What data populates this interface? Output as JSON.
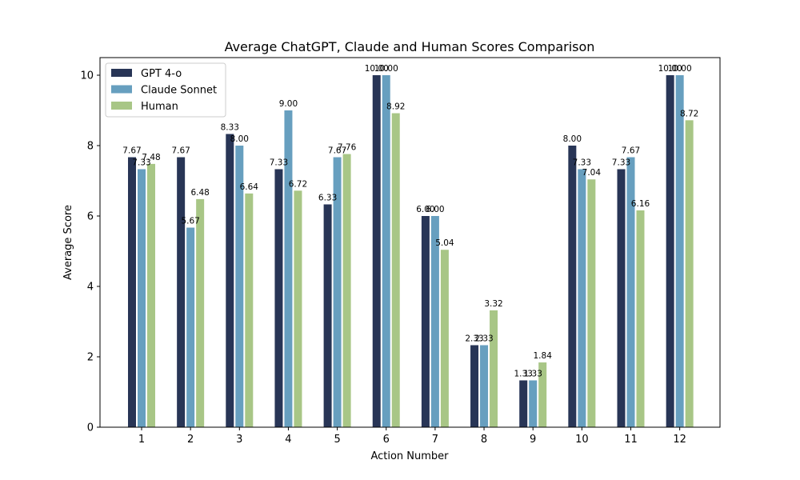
{
  "chart_data": {
    "type": "bar",
    "title": "Average ChatGPT, Claude and Human Scores Comparison",
    "xlabel": "Action Number",
    "ylabel": "Average Score",
    "categories": [
      "1",
      "2",
      "3",
      "4",
      "5",
      "6",
      "7",
      "8",
      "9",
      "10",
      "11",
      "12"
    ],
    "ylim": [
      0,
      10.5
    ],
    "yticks": [
      0,
      2,
      4,
      6,
      8,
      10
    ],
    "legend_position": "top-left",
    "grid": false,
    "series": [
      {
        "name": "GPT 4-o",
        "color": "#283556",
        "values": [
          7.67,
          7.67,
          8.33,
          7.33,
          6.33,
          10.0,
          6.0,
          2.33,
          1.33,
          8.0,
          7.33,
          10.0
        ],
        "labels": [
          "7.67",
          "7.67",
          "8.33",
          "7.33",
          "6.33",
          "10.00",
          "6.00",
          "2.33",
          "1.33",
          "8.00",
          "7.33",
          "10.00"
        ]
      },
      {
        "name": "Claude Sonnet",
        "color": "#679fbf",
        "values": [
          7.33,
          5.67,
          8.0,
          9.0,
          7.67,
          10.0,
          6.0,
          2.33,
          1.33,
          7.33,
          7.67,
          10.0
        ],
        "labels": [
          "7.33",
          "5.67",
          "8.00",
          "9.00",
          "7.67",
          "10.00",
          "6.00",
          "2.33",
          "1.33",
          "7.33",
          "7.67",
          "10.00"
        ]
      },
      {
        "name": "Human",
        "color": "#a8c686",
        "values": [
          7.48,
          6.48,
          6.64,
          6.72,
          7.76,
          8.92,
          5.04,
          3.32,
          1.84,
          7.04,
          6.16,
          8.72
        ],
        "labels": [
          "7.48",
          "6.48",
          "6.64",
          "6.72",
          "7.76",
          "8.92",
          "5.04",
          "3.32",
          "1.84",
          "7.04",
          "6.16",
          "8.72"
        ]
      }
    ]
  }
}
